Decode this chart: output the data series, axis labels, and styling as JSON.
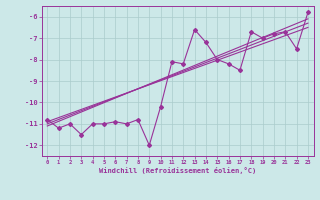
{
  "xlabel": "Windchill (Refroidissement éolien,°C)",
  "bg_color": "#cce8e8",
  "grid_color": "#aacccc",
  "line_color": "#993399",
  "xlim": [
    -0.5,
    23.5
  ],
  "ylim": [
    -12.5,
    -5.5
  ],
  "xticks": [
    0,
    1,
    2,
    3,
    4,
    5,
    6,
    7,
    8,
    9,
    10,
    11,
    12,
    13,
    14,
    15,
    16,
    17,
    18,
    19,
    20,
    21,
    22,
    23
  ],
  "yticks": [
    -12,
    -11,
    -10,
    -9,
    -8,
    -7,
    -6
  ],
  "series": [
    [
      0,
      -10.8
    ],
    [
      1,
      -11.2
    ],
    [
      2,
      -11.0
    ],
    [
      3,
      -11.5
    ],
    [
      4,
      -11.0
    ],
    [
      5,
      -11.0
    ],
    [
      6,
      -10.9
    ],
    [
      7,
      -11.0
    ],
    [
      8,
      -10.8
    ],
    [
      9,
      -12.0
    ],
    [
      10,
      -10.2
    ],
    [
      11,
      -8.1
    ],
    [
      12,
      -8.2
    ],
    [
      13,
      -6.6
    ],
    [
      14,
      -7.2
    ],
    [
      15,
      -8.0
    ],
    [
      16,
      -8.2
    ],
    [
      17,
      -8.5
    ],
    [
      18,
      -6.7
    ],
    [
      19,
      -7.0
    ],
    [
      20,
      -6.8
    ],
    [
      21,
      -6.7
    ],
    [
      22,
      -7.5
    ],
    [
      23,
      -5.8
    ]
  ],
  "reg_lines": [
    [
      [
        0,
        -11.1
      ],
      [
        23,
        -6.1
      ]
    ],
    [
      [
        0,
        -11.0
      ],
      [
        23,
        -6.3
      ]
    ],
    [
      [
        0,
        -10.9
      ],
      [
        23,
        -6.5
      ]
    ]
  ]
}
